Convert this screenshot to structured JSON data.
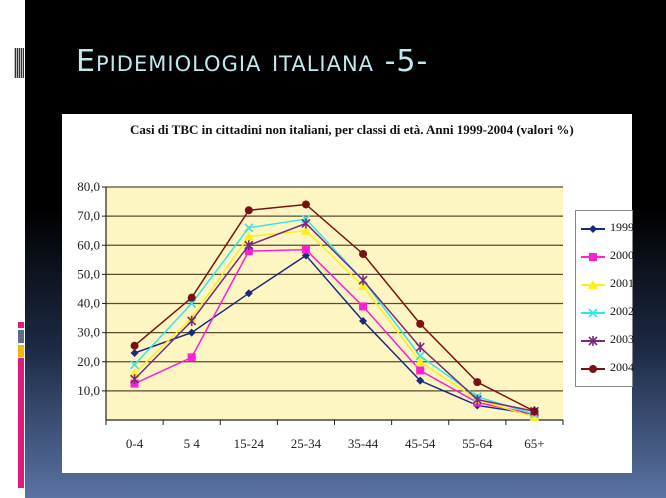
{
  "slide": {
    "title": "Epidemiologia italiana -5-",
    "accent_colors": [
      "#e0197a",
      "#5b6f8a",
      "#f5b400"
    ],
    "background_gradient": [
      "#000000",
      "#5a73a3"
    ]
  },
  "chart_data": {
    "type": "line",
    "title": "Casi di TBC in cittadini non italiani, per classi di età. Anni 1999-2004 (valori %)",
    "xlabel": "",
    "ylabel": "",
    "categories": [
      "0-4",
      "5-14",
      "15-24",
      "25-34",
      "35-44",
      "45-54",
      "55-64",
      "65+"
    ],
    "x_tick_labels_visible": [
      "0-4",
      "5 4",
      "15-24",
      "25-34",
      "35-44",
      "45-54",
      "55-64",
      "65+"
    ],
    "ylim": [
      0,
      80
    ],
    "yticks": [
      "10,0",
      "20,0",
      "30,0",
      "40,0",
      "50,0",
      "60,0",
      "70,0",
      "80,0"
    ],
    "grid": true,
    "plot_background": "#fdf6c3",
    "legend_position": "right",
    "series": [
      {
        "name": "1999",
        "color": "#1a2a7a",
        "marker": "diamond",
        "values": [
          23,
          30,
          43.5,
          56.5,
          34,
          13.5,
          5,
          2
        ]
      },
      {
        "name": "2000",
        "color": "#ff1fd2",
        "marker": "square",
        "values": [
          12.5,
          21.5,
          58,
          58.5,
          39,
          17,
          6,
          2
        ]
      },
      {
        "name": "2001",
        "color": "#ffee1a",
        "marker": "triangle",
        "values": [
          16,
          35,
          63,
          65,
          46,
          20,
          7,
          1
        ]
      },
      {
        "name": "2002",
        "color": "#33e6e6",
        "marker": "x",
        "values": [
          19,
          40,
          66,
          69,
          48,
          22,
          8,
          2
        ]
      },
      {
        "name": "2003",
        "color": "#7a2a7a",
        "marker": "star",
        "values": [
          14,
          34,
          60,
          67.5,
          48,
          25,
          7,
          3
        ]
      },
      {
        "name": "2004",
        "color": "#7a1010",
        "marker": "circle",
        "values": [
          25.5,
          42,
          72,
          74,
          57,
          33,
          13,
          3
        ]
      }
    ]
  },
  "legend": {
    "items": [
      "1999",
      "2000",
      "2001",
      "2002",
      "2003",
      "2004"
    ]
  }
}
